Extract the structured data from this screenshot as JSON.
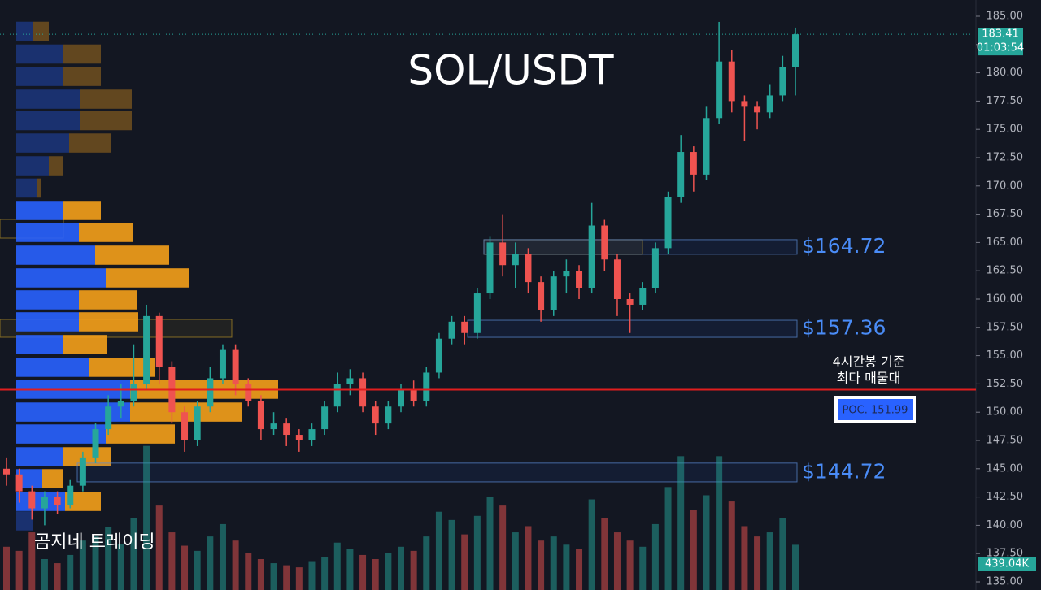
{
  "chart_data": {
    "type": "candlestick",
    "title": "SOL/USDT",
    "watermark": "곰지네 트레이딩",
    "ylim": [
      135,
      185
    ],
    "yticks": [
      {
        "value": 135,
        "label": "135.00"
      },
      {
        "value": 137.5,
        "label": "137.50"
      },
      {
        "value": 140,
        "label": "140.00"
      },
      {
        "value": 142.5,
        "label": "142.50"
      },
      {
        "value": 145,
        "label": "145.00"
      },
      {
        "value": 147.5,
        "label": "147.50"
      },
      {
        "value": 150,
        "label": "150.00"
      },
      {
        "value": 152.5,
        "label": "152.50"
      },
      {
        "value": 155,
        "label": "155.00"
      },
      {
        "value": 157.5,
        "label": "157.50"
      },
      {
        "value": 160,
        "label": "160.00"
      },
      {
        "value": 162.5,
        "label": "162.50"
      },
      {
        "value": 165,
        "label": "165.00"
      },
      {
        "value": 167.5,
        "label": "167.50"
      },
      {
        "value": 170,
        "label": "170.00"
      },
      {
        "value": 172.5,
        "label": "172.50"
      },
      {
        "value": 175,
        "label": "175.00"
      },
      {
        "value": 177.5,
        "label": "177.50"
      },
      {
        "value": 180,
        "label": "180.00"
      },
      {
        "value": 182.5,
        "label": "182.50"
      },
      {
        "value": 185,
        "label": "185.00"
      }
    ],
    "up_color": "#26a69a",
    "down_color": "#ef5350",
    "open": [
      145.0,
      144.5,
      143.0,
      141.5,
      142.5,
      141.8,
      143.5,
      146.0,
      148.5,
      150.5,
      151.0,
      152.5,
      158.5,
      154.0,
      150.0,
      147.5,
      150.5,
      153.0,
      155.5,
      152.5,
      151.0,
      148.5,
      149.0,
      148.0,
      147.5,
      148.5,
      150.5,
      152.5,
      153.0,
      150.5,
      149.0,
      150.5,
      152.0,
      151.0,
      153.5,
      156.5,
      158.0,
      157.0,
      160.5,
      165.0,
      163.0,
      164.0,
      161.5,
      159.0,
      162.0,
      162.5,
      161.0,
      166.5,
      163.5,
      160.0,
      159.5,
      161.0,
      164.5,
      169.0,
      173.0,
      171.0,
      176.0,
      181.0,
      177.5,
      177.0,
      176.5,
      178.0,
      180.5
    ],
    "high": [
      146.0,
      145.0,
      143.5,
      143.0,
      143.0,
      144.0,
      146.5,
      149.0,
      151.5,
      152.5,
      156.0,
      159.5,
      158.8,
      154.5,
      150.5,
      151.0,
      154.0,
      156.0,
      156.0,
      153.0,
      151.5,
      150.0,
      149.5,
      148.5,
      149.0,
      151.0,
      153.5,
      153.8,
      153.5,
      151.0,
      151.0,
      152.5,
      152.8,
      154.0,
      157.0,
      158.5,
      158.5,
      161.0,
      165.5,
      167.5,
      165.0,
      164.5,
      162.0,
      162.5,
      163.5,
      163.0,
      168.5,
      167.0,
      164.0,
      160.5,
      161.5,
      165.0,
      169.5,
      174.5,
      173.5,
      177.0,
      184.5,
      182.0,
      178.0,
      177.5,
      179.0,
      181.5,
      184.0
    ],
    "low": [
      143.5,
      142.0,
      140.5,
      140.0,
      141.0,
      141.5,
      143.0,
      145.5,
      148.0,
      149.5,
      150.5,
      152.0,
      152.5,
      149.0,
      146.5,
      147.0,
      150.0,
      152.5,
      151.5,
      150.5,
      147.5,
      148.0,
      147.0,
      146.5,
      147.0,
      148.0,
      150.0,
      151.5,
      150.0,
      148.0,
      148.5,
      150.0,
      150.5,
      150.5,
      153.0,
      156.0,
      156.0,
      156.5,
      160.0,
      162.0,
      161.0,
      160.5,
      158.0,
      158.5,
      160.5,
      160.0,
      160.5,
      162.5,
      158.5,
      157.0,
      159.0,
      160.5,
      164.0,
      168.5,
      169.5,
      170.5,
      175.5,
      176.5,
      174.0,
      175.0,
      176.0,
      177.5,
      178.0
    ],
    "close": [
      144.5,
      143.0,
      141.5,
      142.5,
      141.8,
      143.5,
      146.0,
      148.5,
      150.5,
      151.0,
      152.5,
      158.5,
      154.0,
      150.0,
      147.5,
      150.5,
      153.0,
      155.5,
      152.5,
      151.0,
      148.5,
      149.0,
      148.0,
      147.5,
      148.5,
      150.5,
      152.5,
      153.0,
      150.5,
      149.0,
      150.5,
      152.0,
      151.0,
      153.5,
      156.5,
      158.0,
      157.0,
      160.5,
      165.0,
      163.0,
      164.0,
      161.5,
      159.0,
      162.0,
      162.5,
      161.0,
      166.5,
      163.5,
      160.0,
      159.5,
      161.0,
      164.5,
      169.0,
      173.0,
      171.0,
      176.0,
      181.0,
      177.5,
      177.0,
      176.5,
      178.0,
      180.5,
      183.41
    ],
    "volume": [
      420,
      380,
      560,
      300,
      260,
      340,
      480,
      520,
      610,
      450,
      700,
      1400,
      820,
      560,
      430,
      380,
      520,
      640,
      480,
      360,
      300,
      260,
      240,
      220,
      280,
      320,
      460,
      400,
      340,
      300,
      360,
      420,
      380,
      520,
      760,
      680,
      540,
      720,
      900,
      820,
      560,
      620,
      480,
      520,
      440,
      400,
      880,
      700,
      560,
      480,
      420,
      640,
      1000,
      1300,
      780,
      920,
      1300,
      860,
      620,
      520,
      560,
      700,
      439.04
    ],
    "last_price": 183.41,
    "countdown": "01:03:54",
    "last_volume_label": "439.04K",
    "profile": {
      "prices": [
        183.67,
        181.66,
        179.68,
        177.67,
        175.77,
        173.79,
        171.78,
        169.81,
        167.83,
        165.89,
        163.88,
        161.87,
        159.93,
        157.99,
        155.98,
        153.97,
        152.03,
        150.01,
        148.07,
        146.06,
        144.12,
        142.11,
        140.39
      ],
      "row_height": 1.98,
      "buy": [
        20,
        58,
        58,
        78,
        78,
        65,
        40,
        25,
        58,
        77,
        97,
        110,
        77,
        77,
        58,
        90,
        140,
        140,
        110,
        58,
        32,
        60,
        20
      ],
      "sell": [
        20,
        46,
        46,
        64,
        64,
        51,
        18,
        5,
        46,
        66,
        91,
        103,
        72,
        73,
        53,
        81,
        182,
        138,
        85,
        59,
        26,
        44,
        0
      ],
      "buy_color": "#2962ff",
      "sell_color": "#f5a01a",
      "value_area": [
        141.1,
        168.8
      ]
    },
    "zones": [
      {
        "label": "$164.72",
        "low": 163.96,
        "high": 165.25
      },
      {
        "label": "$157.36",
        "low": 156.62,
        "high": 158.13
      },
      {
        "label": "$144.72",
        "low": 143.84,
        "high": 145.5
      }
    ],
    "poc": {
      "value": 151.99,
      "label": "POC. 151.99",
      "note": [
        "4시간봉 기준",
        "최다 매물대"
      ]
    }
  }
}
